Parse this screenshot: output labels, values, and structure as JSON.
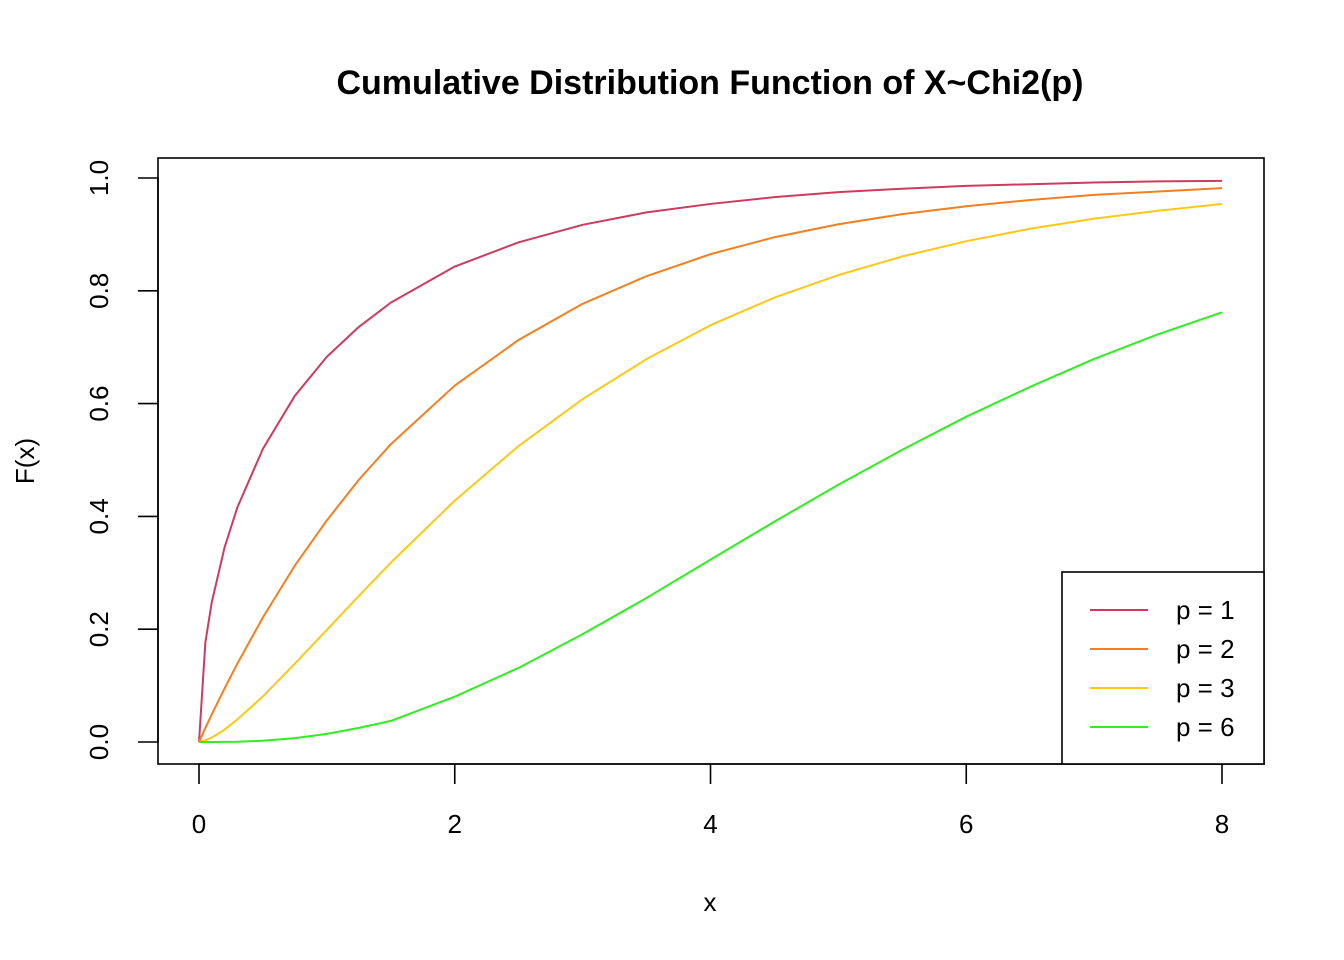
{
  "chart_data": {
    "type": "line",
    "title": "Cumulative Distribution Function of X~Chi2(p)",
    "xlabel": "x",
    "ylabel": "F(x)",
    "xlim": [
      0,
      8
    ],
    "ylim": [
      0,
      1
    ],
    "x_ticks": [
      "0",
      "2",
      "4",
      "6",
      "8"
    ],
    "y_ticks": [
      "0.0",
      "0.2",
      "0.4",
      "0.6",
      "0.8",
      "1.0"
    ],
    "grid": false,
    "legend_position": "bottom-right",
    "x": [
      0,
      0.05,
      0.1,
      0.2,
      0.3,
      0.5,
      0.75,
      1,
      1.25,
      1.5,
      2,
      2.5,
      3,
      3.5,
      4,
      4.5,
      5,
      5.5,
      6,
      6.5,
      7,
      7.5,
      8
    ],
    "series": [
      {
        "name": "p = 1",
        "color": "#CD3B5E",
        "values": [
          0,
          0.177,
          0.248,
          0.345,
          0.416,
          0.52,
          0.614,
          0.683,
          0.736,
          0.779,
          0.843,
          0.886,
          0.917,
          0.939,
          0.954,
          0.966,
          0.975,
          0.981,
          0.986,
          0.989,
          0.992,
          0.994,
          0.995
        ]
      },
      {
        "name": "p = 2",
        "color": "#F57F1E",
        "values": [
          0,
          0.025,
          0.049,
          0.095,
          0.139,
          0.221,
          0.313,
          0.393,
          0.465,
          0.528,
          0.632,
          0.713,
          0.777,
          0.826,
          0.865,
          0.895,
          0.918,
          0.936,
          0.95,
          0.961,
          0.97,
          0.976,
          0.982
        ]
      },
      {
        "name": "p = 3",
        "color": "#FFC815",
        "values": [
          0,
          0.003,
          0.008,
          0.022,
          0.04,
          0.081,
          0.139,
          0.199,
          0.259,
          0.318,
          0.428,
          0.525,
          0.608,
          0.679,
          0.739,
          0.788,
          0.828,
          0.861,
          0.888,
          0.91,
          0.928,
          0.942,
          0.954
        ]
      },
      {
        "name": "p = 6",
        "color": "#2EF01E",
        "values": [
          0,
          0.0,
          0.0,
          0.0002,
          0.0005,
          0.0022,
          0.0068,
          0.0144,
          0.025,
          0.0374,
          0.0803,
          0.1315,
          0.1912,
          0.2554,
          0.3233,
          0.3907,
          0.4562,
          0.5182,
          0.5768,
          0.6297,
          0.6792,
          0.7229,
          0.7619
        ]
      }
    ]
  }
}
